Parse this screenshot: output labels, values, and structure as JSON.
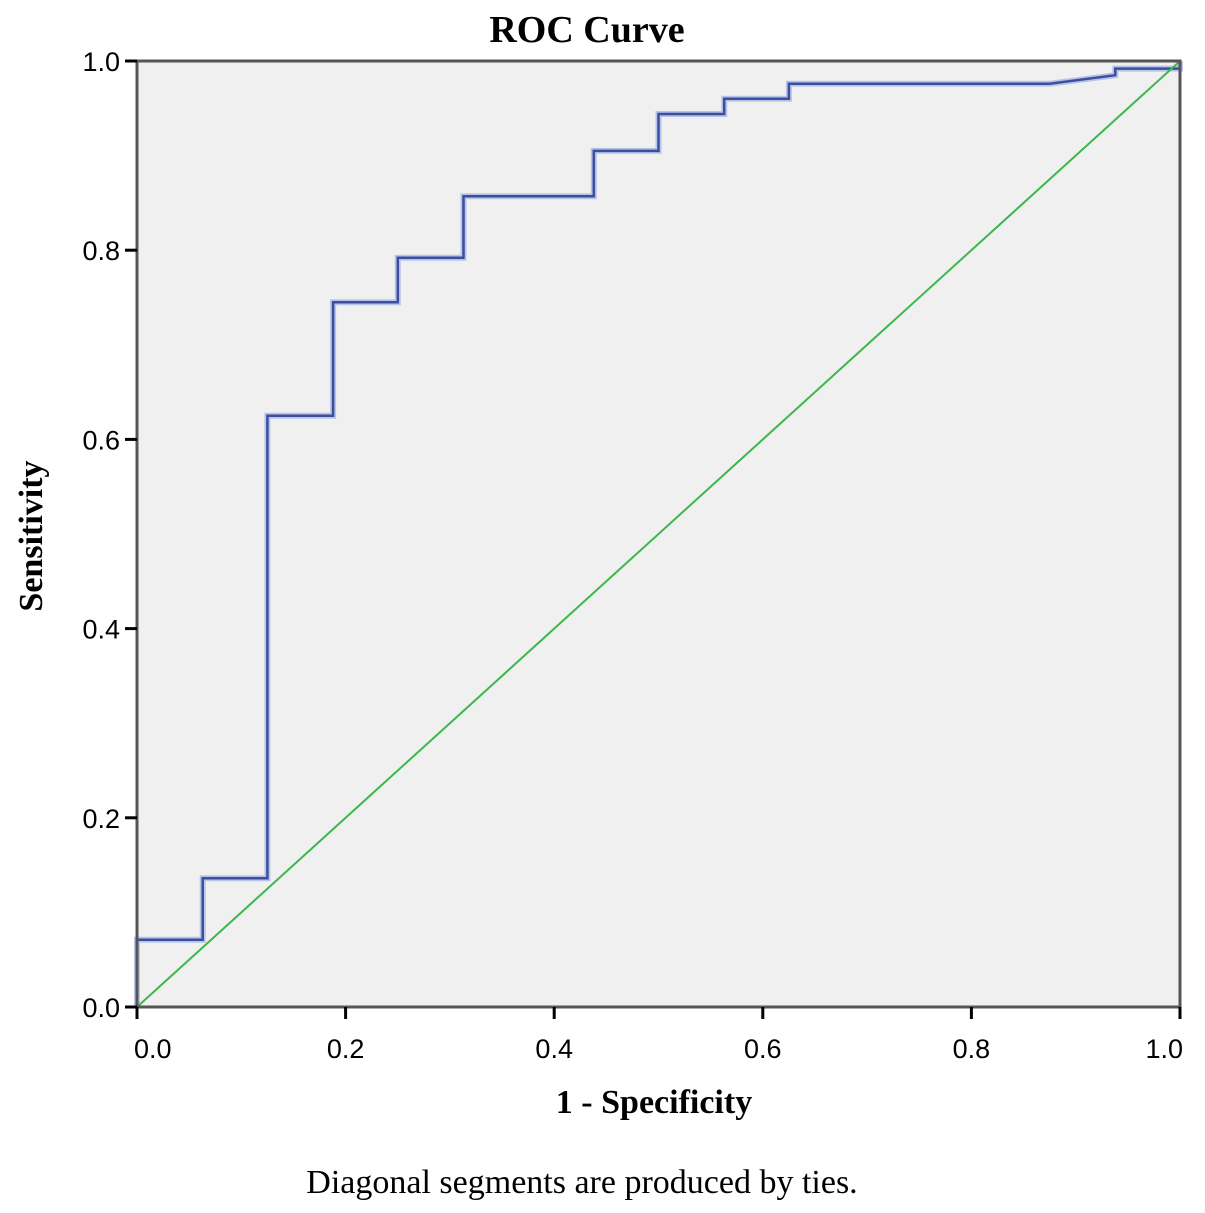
{
  "chart_data": {
    "type": "line",
    "title": "ROC Curve",
    "xlabel": "1 - Specificity",
    "ylabel": "Sensitivity",
    "footnote": "Diagonal segments are produced by ties.",
    "xlim": [
      0,
      1
    ],
    "ylim": [
      0,
      1
    ],
    "xticks": [
      "0.0",
      "0.2",
      "0.4",
      "0.6",
      "0.8",
      "1.0"
    ],
    "yticks": [
      "0.0",
      "0.2",
      "0.4",
      "0.6",
      "0.8",
      "1.0"
    ],
    "grid": false,
    "background_color": "#f0f0f0",
    "series": [
      {
        "color": "#3b4fa0",
        "points": [
          [
            0,
            0
          ],
          [
            0,
            0.071
          ],
          [
            0.063,
            0.071
          ],
          [
            0.063,
            0.136
          ],
          [
            0.125,
            0.136
          ],
          [
            0.125,
            0.625
          ],
          [
            0.188,
            0.625
          ],
          [
            0.188,
            0.745
          ],
          [
            0.25,
            0.745
          ],
          [
            0.25,
            0.792
          ],
          [
            0.313,
            0.792
          ],
          [
            0.313,
            0.857
          ],
          [
            0.438,
            0.857
          ],
          [
            0.438,
            0.905
          ],
          [
            0.5,
            0.905
          ],
          [
            0.5,
            0.944
          ],
          [
            0.563,
            0.944
          ],
          [
            0.563,
            0.96
          ],
          [
            0.625,
            0.96
          ],
          [
            0.625,
            0.976
          ],
          [
            0.875,
            0.976
          ],
          [
            0.938,
            0.985
          ],
          [
            0.938,
            0.992
          ],
          [
            1.0,
            0.992
          ],
          [
            1.0,
            1.0
          ]
        ]
      },
      {
        "color": "#3cb84a",
        "points": [
          [
            0,
            0
          ],
          [
            1,
            1
          ]
        ]
      }
    ]
  }
}
